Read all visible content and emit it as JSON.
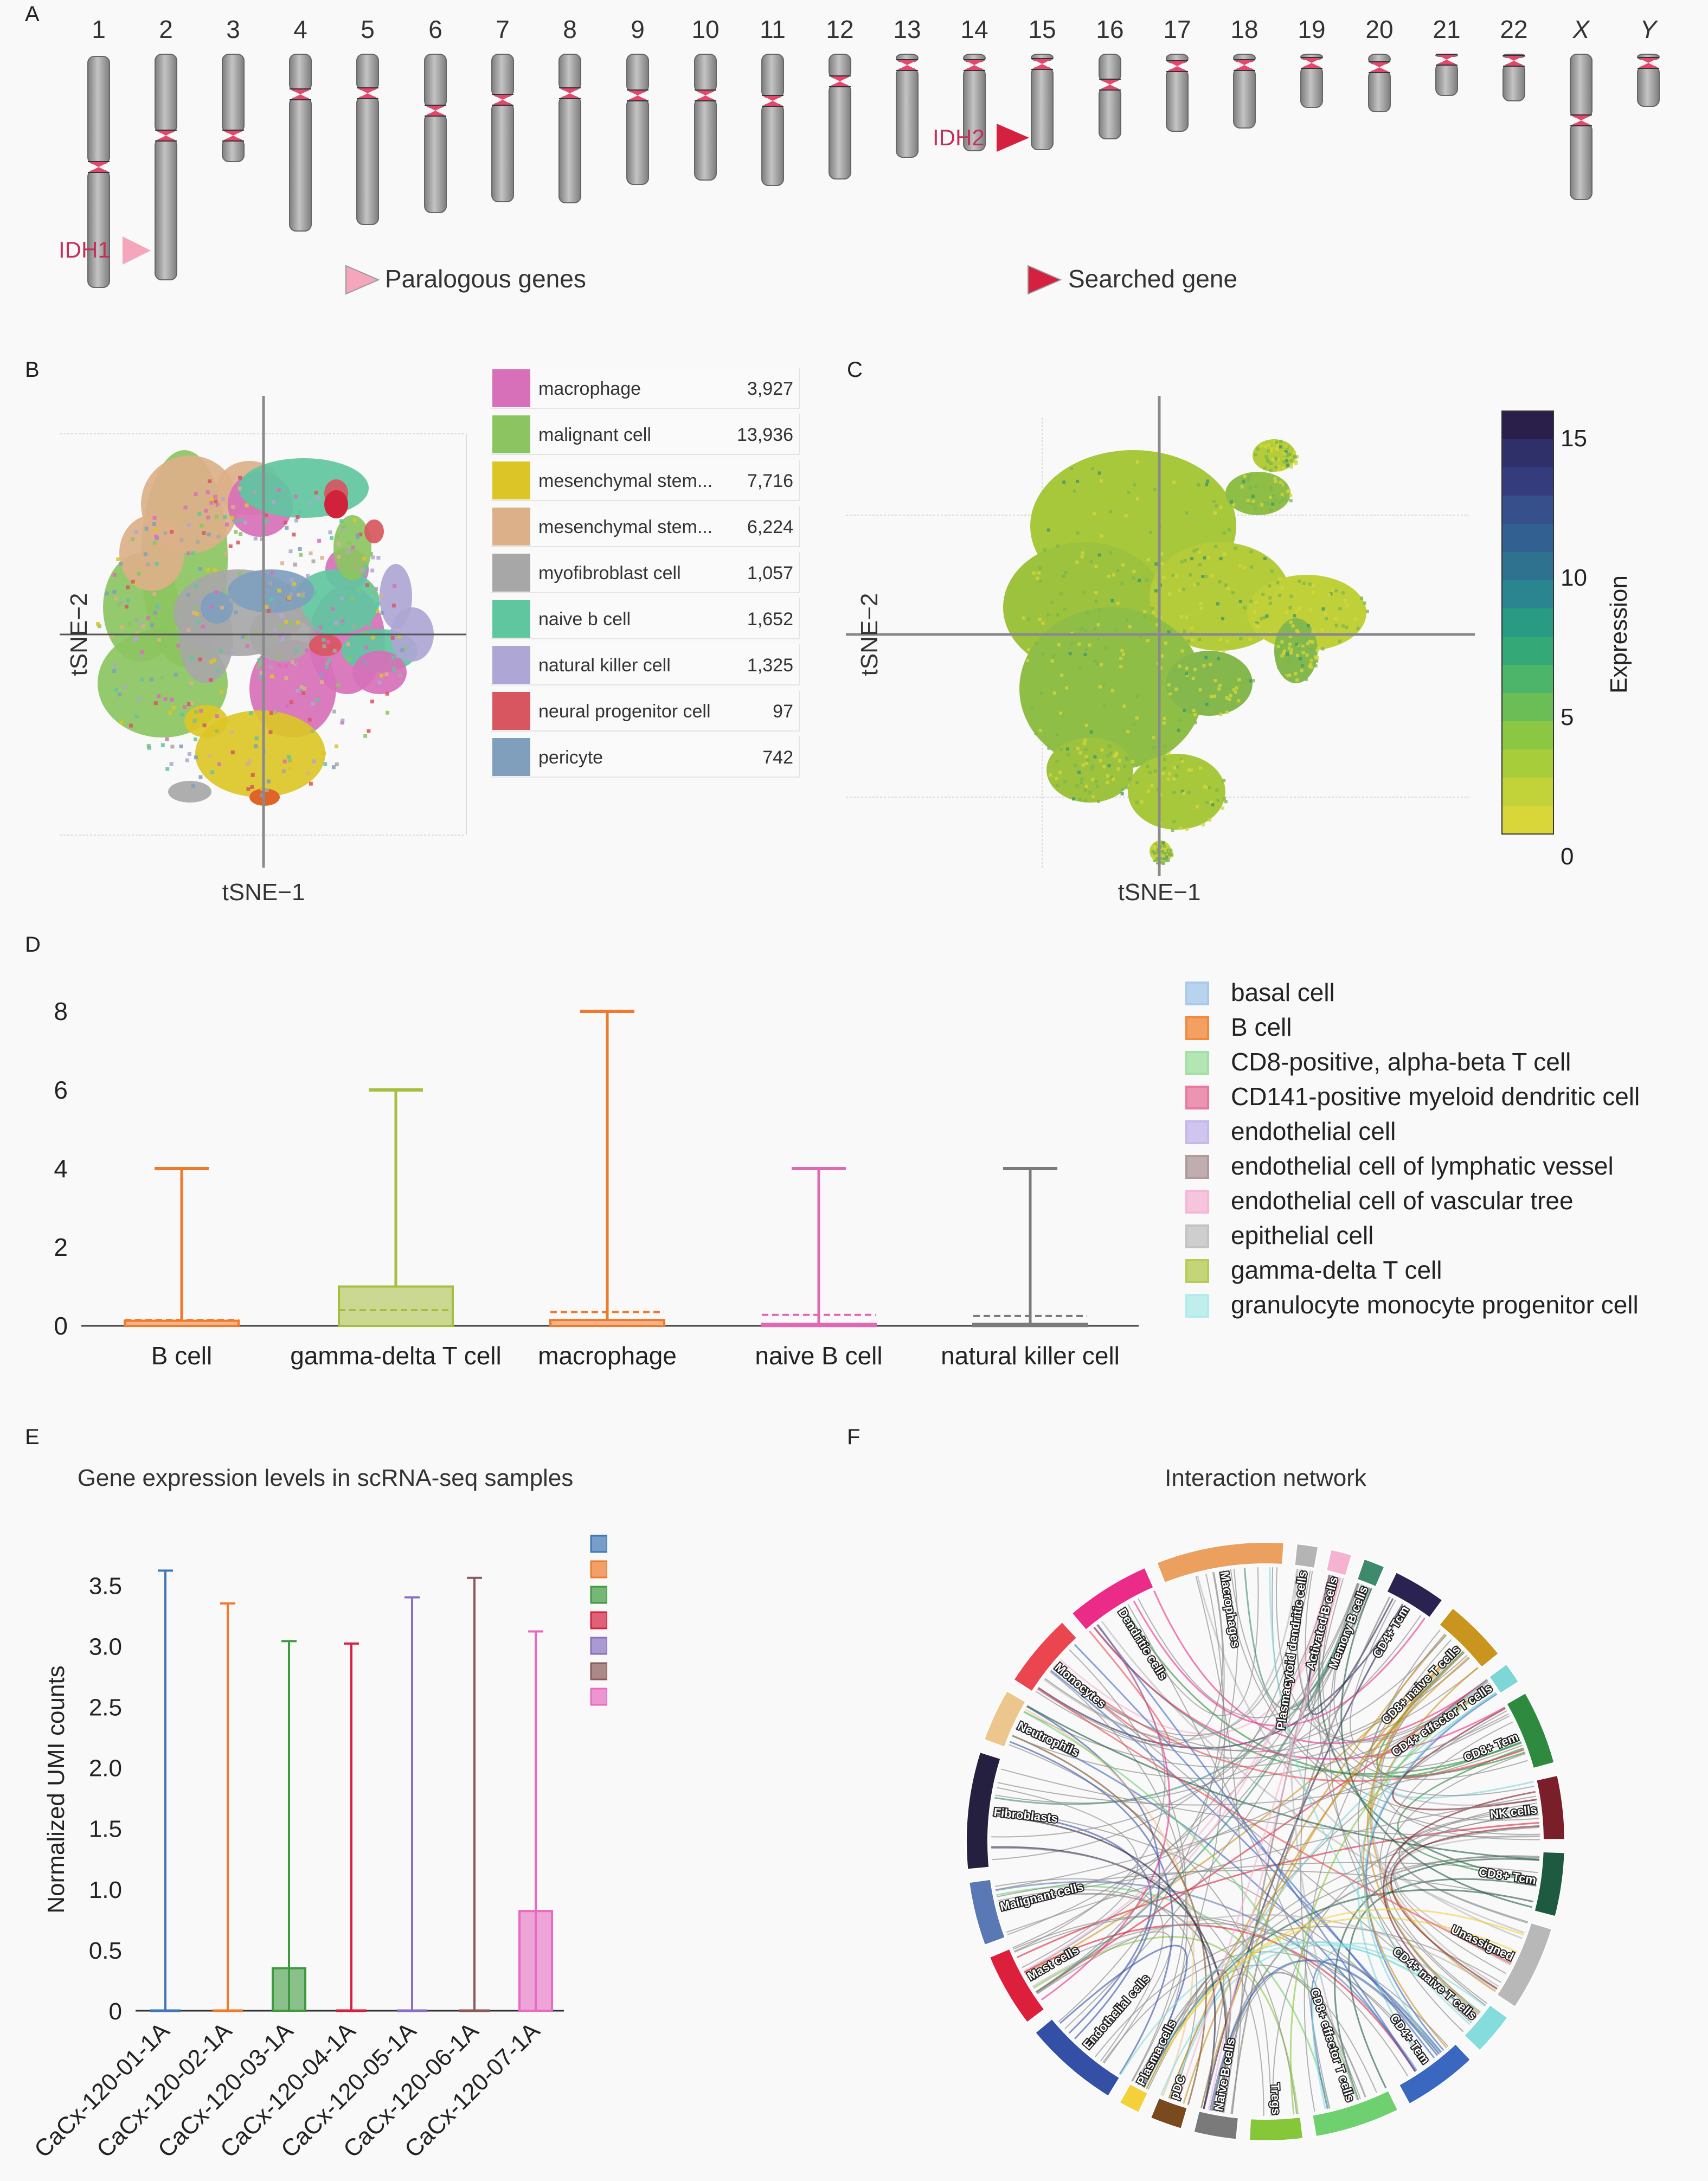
{
  "panels": {
    "A": "A",
    "B": "B",
    "C": "C",
    "D": "D",
    "E": "E",
    "F": "F"
  },
  "panelA": {
    "chromosomes": [
      "1",
      "2",
      "3",
      "4",
      "5",
      "6",
      "7",
      "8",
      "9",
      "10",
      "11",
      "12",
      "13",
      "14",
      "15",
      "16",
      "17",
      "18",
      "19",
      "20",
      "21",
      "22",
      "X",
      "Y"
    ],
    "gene_labels": {
      "paralog": "IDH1",
      "searched": "IDH2"
    },
    "legend": {
      "paralog": "Paralogous genes",
      "searched": "Searched gene"
    },
    "colors": {
      "paralog": "#f4a6bd",
      "searched": "#d6203f",
      "centromere": "#e3476b",
      "chromosome": "#9b9b9b"
    }
  },
  "panelB": {
    "xlabel": "tSNE−1",
    "ylabel": "tSNE−2",
    "legend": [
      {
        "name": "macrophage",
        "count": "3,927",
        "color": "#d770b9"
      },
      {
        "name": "malignant cell",
        "count": "13,936",
        "color": "#8cc461"
      },
      {
        "name": "mesenchymal stem...",
        "count": "7,716",
        "color": "#dcc527"
      },
      {
        "name": "mesenchymal stem...",
        "count": "6,224",
        "color": "#dcb089"
      },
      {
        "name": "myofibroblast cell",
        "count": "1,057",
        "color": "#a7a7a7"
      },
      {
        "name": "naive b cell",
        "count": "1,652",
        "color": "#5fc6a0"
      },
      {
        "name": "natural killer cell",
        "count": "1,325",
        "color": "#aea6d4"
      },
      {
        "name": "neural progenitor cell",
        "count": "97",
        "color": "#d8565f"
      },
      {
        "name": "pericyte",
        "count": "742",
        "color": "#7f9fbd"
      }
    ]
  },
  "panelC": {
    "xlabel": "tSNE−1",
    "ylabel": "tSNE−2",
    "colorbar_label": "Expression",
    "colorbar_ticks": [
      "15",
      "10",
      "5",
      "0"
    ]
  },
  "panelE": {
    "title": "Gene expression levels in scRNA-seq samples"
  },
  "panelF": {
    "title": "Interaction network",
    "nodes": [
      {
        "name": "Plasmacytoid dendritic cells",
        "color": "#b4b4b4"
      },
      {
        "name": "Activated B cells",
        "color": "#f5b3d1"
      },
      {
        "name": "Memory B cells",
        "color": "#3e8a6c"
      },
      {
        "name": "CD4+ Tcm",
        "color": "#2a2250"
      },
      {
        "name": "CD8+ naive T cells",
        "color": "#c9951f"
      },
      {
        "name": "CD4+ effector T cells",
        "color": "#7fd6d6"
      },
      {
        "name": "CD8+ Tem",
        "color": "#2e8a3e"
      },
      {
        "name": "NK cells",
        "color": "#7a1e2a"
      },
      {
        "name": "CD8+ Tcm",
        "color": "#1e5a3f"
      },
      {
        "name": "Unassigned",
        "color": "#b8b8b8"
      },
      {
        "name": "CD4+ naive T cells",
        "color": "#85dcdc"
      },
      {
        "name": "CD4+ Tem",
        "color": "#3a68c0"
      },
      {
        "name": "CD8+ effector T cells",
        "color": "#6fd06f"
      },
      {
        "name": "Tregs",
        "color": "#86c73a"
      },
      {
        "name": "Naive B cells",
        "color": "#7a7a7a"
      },
      {
        "name": "pDC",
        "color": "#7a4a1f"
      },
      {
        "name": "Plasma cells",
        "color": "#f4d13a"
      },
      {
        "name": "Endothelial cells",
        "color": "#3450a6"
      },
      {
        "name": "Mast cells",
        "color": "#dc1f3b"
      },
      {
        "name": "Malignant cells",
        "color": "#5a78b4"
      },
      {
        "name": "Fibroblasts",
        "color": "#25203f"
      },
      {
        "name": "Neutrophils",
        "color": "#ecc68c"
      },
      {
        "name": "Monocytes",
        "color": "#eb4650"
      },
      {
        "name": "Dendritic cells",
        "color": "#ec2a88"
      },
      {
        "name": "Macrophages",
        "color": "#eca060"
      }
    ]
  },
  "chart_data": [
    {
      "type": "box",
      "panel": "D",
      "categories": [
        "B cell",
        "gamma-delta T cell",
        "macrophage",
        "naive B cell",
        "natural killer cell"
      ],
      "max": [
        4,
        6,
        8,
        4,
        4
      ],
      "q1": [
        0,
        0,
        0,
        0,
        0
      ],
      "q3": [
        0.13,
        1.0,
        0.15,
        0.05,
        0.05
      ],
      "mean": [
        0.15,
        0.4,
        0.35,
        0.28,
        0.25
      ],
      "min": [
        0,
        0,
        0,
        0,
        0
      ],
      "colors": [
        "#f07a2c",
        "#a5be3e",
        "#f07a2c",
        "#e069b4",
        "#7a7a7a"
      ],
      "ylim": [
        0,
        8
      ],
      "yticks": [
        "0",
        "2",
        "4",
        "6",
        "8"
      ],
      "legend": [
        {
          "name": "basal cell",
          "color": "#a9c9ec"
        },
        {
          "name": "B cell",
          "color": "#f28a3c"
        },
        {
          "name": "CD8-positive, alpha-beta T cell",
          "color": "#a3e0a3"
        },
        {
          "name": "CD141-positive myeloid dendritic cell",
          "color": "#e87aa0"
        },
        {
          "name": "endothelial cell",
          "color": "#c5b8ec"
        },
        {
          "name": "endothelial cell of lymphatic vessel",
          "color": "#b09a9e"
        },
        {
          "name": "endothelial cell of vascular tree",
          "color": "#f5b7d6"
        },
        {
          "name": "epithelial cell",
          "color": "#c3c3c3"
        },
        {
          "name": "gamma-delta T cell",
          "color": "#b7cc57"
        },
        {
          "name": "granulocyte monocyte progenitor cell",
          "color": "#b2ebe8"
        }
      ]
    },
    {
      "type": "box",
      "panel": "E",
      "title": "Gene expression levels in scRNA-seq samples",
      "ylabel": "Normalized UMI counts",
      "categories": [
        "CaCx-120-01-1A",
        "CaCx-120-02-1A",
        "CaCx-120-03-1A",
        "CaCx-120-04-1A",
        "CaCx-120-05-1A",
        "CaCx-120-06-1A",
        "CaCx-120-07-1A"
      ],
      "max": [
        3.62,
        3.35,
        3.04,
        3.02,
        3.4,
        3.56,
        3.12
      ],
      "q1": [
        0,
        0,
        0,
        0,
        0,
        0,
        0
      ],
      "q3": [
        0,
        0,
        0.35,
        0,
        0,
        0,
        0.82
      ],
      "min": [
        0,
        0,
        0,
        0,
        0,
        0,
        0
      ],
      "colors": [
        "#3f78b4",
        "#f07a2c",
        "#3f9a3f",
        "#d6203f",
        "#8a70c0",
        "#8c5a5a",
        "#e86ac2"
      ],
      "ylim": [
        0,
        3.8
      ],
      "yticks": [
        "0",
        "0.5",
        "1.0",
        "1.5",
        "2.0",
        "2.5",
        "3.0",
        "3.5"
      ]
    }
  ]
}
